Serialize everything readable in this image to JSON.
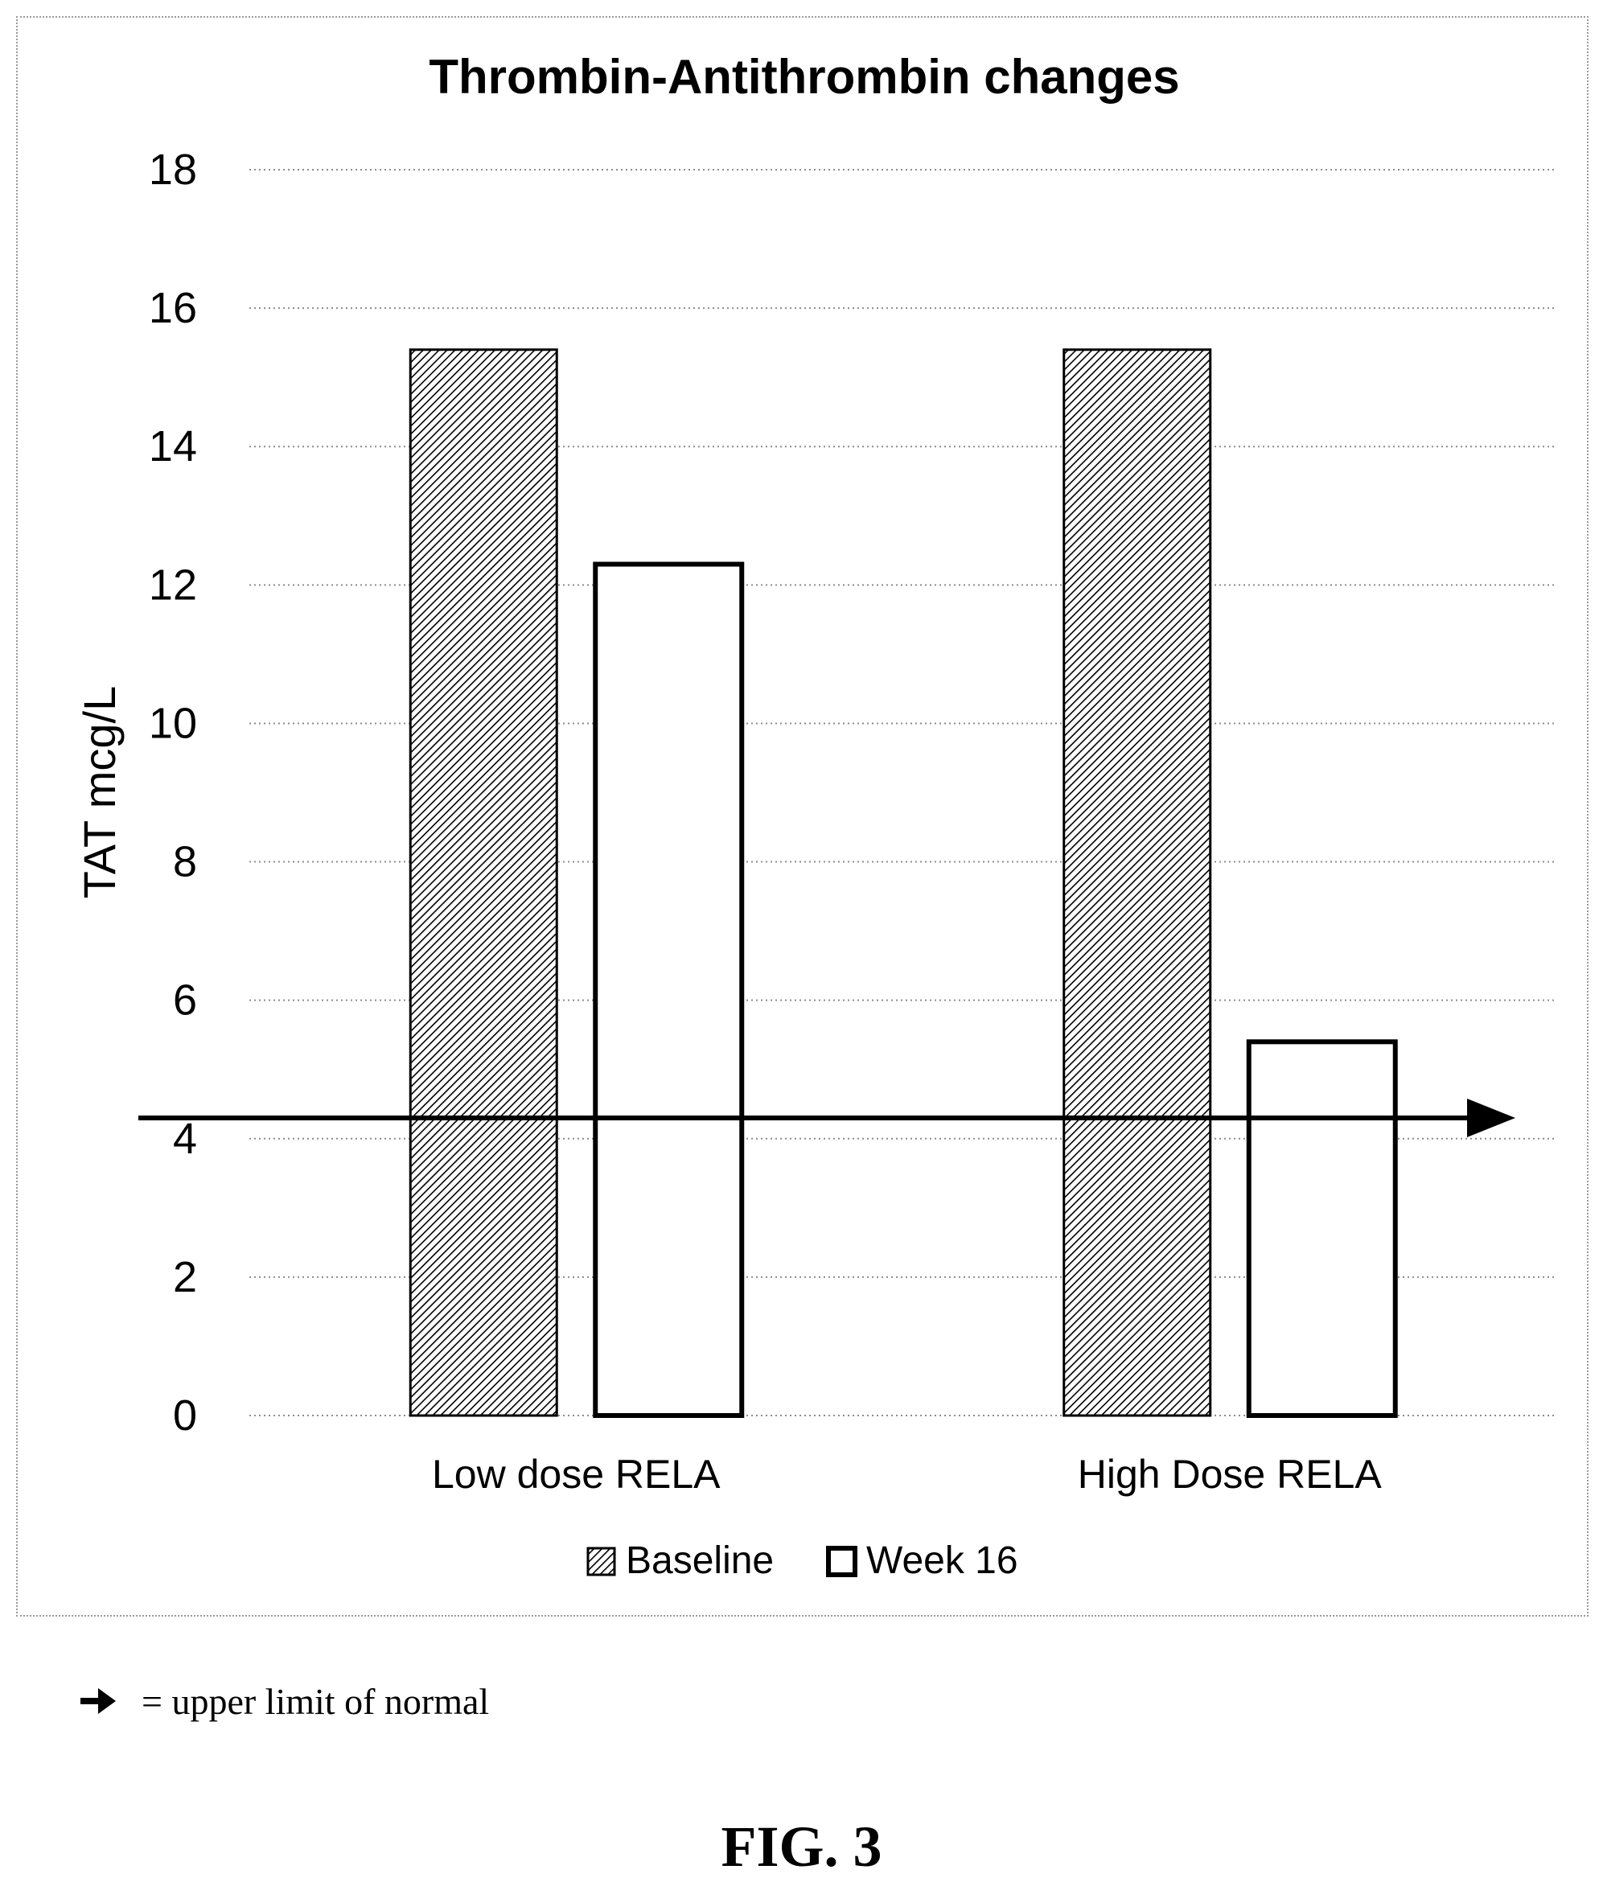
{
  "chart_data": {
    "type": "bar",
    "title": "Thrombin-Antithrombin changes",
    "xlabel": "",
    "ylabel": "TAT mcg/L",
    "categories": [
      "Low dose RELA",
      "High Dose RELA"
    ],
    "series": [
      {
        "name": "Baseline",
        "values": [
          15.4,
          15.4
        ],
        "fill": "hatched"
      },
      {
        "name": "Week 16",
        "values": [
          12.3,
          5.4
        ],
        "fill": "white"
      }
    ],
    "ylim": [
      0,
      18
    ],
    "yticks": [
      "0",
      "2",
      "4",
      "6",
      "8",
      "10",
      "12",
      "14",
      "16",
      "18"
    ],
    "grid": true,
    "legend_position": "bottom",
    "reference_line": {
      "value": 4.3,
      "style": "arrow"
    }
  },
  "footnote": {
    "text": "= upper limit of normal",
    "icon": "right-arrow-icon"
  },
  "figure_label": "FIG. 3",
  "colors": {
    "ink": "#000000",
    "grid": "#8c8c8c",
    "frame": "#9a9a9a"
  }
}
